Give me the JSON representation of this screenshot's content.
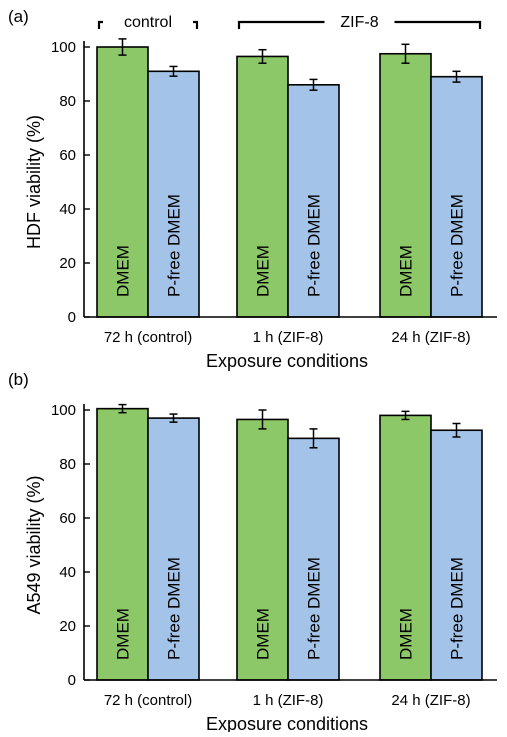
{
  "chart_data": [
    {
      "panel_label": "(a)",
      "type": "bar",
      "ylabel": "HDF viability (%)",
      "xlabel": "Exposure conditions",
      "ylim": [
        0,
        100
      ],
      "yticks": [
        0,
        20,
        40,
        60,
        80,
        100
      ],
      "groups": [
        "72 h (control)",
        "1 h (ZIF-8)",
        "24 h (ZIF-8)"
      ],
      "bar_labels": [
        "DMEM",
        "P-free DMEM"
      ],
      "values": [
        [
          100,
          91
        ],
        [
          96.5,
          86
        ],
        [
          97.5,
          89
        ]
      ],
      "errors": [
        [
          3,
          1.8
        ],
        [
          2.5,
          2
        ],
        [
          3.5,
          2
        ]
      ],
      "brackets": [
        {
          "label": "control",
          "groups": [
            0
          ]
        },
        {
          "label": "ZIF-8",
          "groups": [
            1,
            2
          ]
        }
      ],
      "colors": [
        "#8cc867",
        "#a3c4e8"
      ]
    },
    {
      "panel_label": "(b)",
      "type": "bar",
      "ylabel": "A549 viability (%)",
      "xlabel": "Exposure conditions",
      "ylim": [
        0,
        100
      ],
      "yticks": [
        0,
        20,
        40,
        60,
        80,
        100
      ],
      "groups": [
        "72 h (control)",
        "1 h (ZIF-8)",
        "24 h (ZIF-8)"
      ],
      "bar_labels": [
        "DMEM",
        "P-free DMEM"
      ],
      "values": [
        [
          100.5,
          97
        ],
        [
          96.5,
          89.5
        ],
        [
          98,
          92.5
        ]
      ],
      "errors": [
        [
          1.5,
          1.5
        ],
        [
          3.5,
          3.5
        ],
        [
          1.5,
          2.5
        ]
      ],
      "brackets": [],
      "colors": [
        "#8cc867",
        "#a3c4e8"
      ]
    }
  ]
}
